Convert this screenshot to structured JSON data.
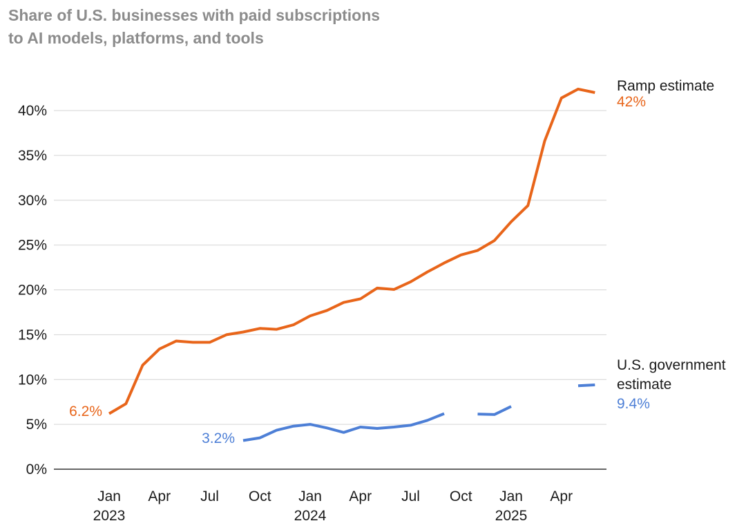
{
  "title_lines": [
    "Share of U.S. businesses with paid subscriptions",
    "to AI models, platforms, and tools"
  ],
  "chart_data": {
    "type": "line",
    "title": "Share of U.S. businesses with paid subscriptions to AI models, platforms, and tools",
    "xlabel": "",
    "ylabel": "",
    "ylim": [
      0,
      40
    ],
    "y_ticks": [
      {
        "value": 0,
        "label": "0%"
      },
      {
        "value": 5,
        "label": "5%"
      },
      {
        "value": 10,
        "label": "10%"
      },
      {
        "value": 15,
        "label": "15%"
      },
      {
        "value": 20,
        "label": "20%"
      },
      {
        "value": 25,
        "label": "25%"
      },
      {
        "value": 30,
        "label": "30%"
      },
      {
        "value": 35,
        "label": "35%"
      },
      {
        "value": 40,
        "label": "40%"
      }
    ],
    "x_range": [
      "2023-01",
      "2025-06"
    ],
    "x_ticks": [
      {
        "month": "2023-01",
        "label": "Jan",
        "year": "2023"
      },
      {
        "month": "2023-04",
        "label": "Apr",
        "year": ""
      },
      {
        "month": "2023-07",
        "label": "Jul",
        "year": ""
      },
      {
        "month": "2023-10",
        "label": "Oct",
        "year": ""
      },
      {
        "month": "2024-01",
        "label": "Jan",
        "year": "2024"
      },
      {
        "month": "2024-04",
        "label": "Apr",
        "year": ""
      },
      {
        "month": "2024-07",
        "label": "Jul",
        "year": ""
      },
      {
        "month": "2024-10",
        "label": "Oct",
        "year": ""
      },
      {
        "month": "2025-01",
        "label": "Jan",
        "year": "2025"
      },
      {
        "month": "2025-04",
        "label": "Apr",
        "year": ""
      }
    ],
    "grid": true,
    "series": [
      {
        "name": "Ramp estimate",
        "end_label": "42%",
        "start_label": "6.2%",
        "color": "#e8651a",
        "points": [
          {
            "t": 0,
            "v": 6.2
          },
          {
            "t": 1,
            "v": 7.3
          },
          {
            "t": 2,
            "v": 11.6
          },
          {
            "t": 3,
            "v": 13.4
          },
          {
            "t": 4,
            "v": 14.3
          },
          {
            "t": 5,
            "v": 14.15
          },
          {
            "t": 6,
            "v": 14.15
          },
          {
            "t": 7,
            "v": 15.0
          },
          {
            "t": 8,
            "v": 15.3
          },
          {
            "t": 9,
            "v": 15.7
          },
          {
            "t": 10,
            "v": 15.6
          },
          {
            "t": 11,
            "v": 16.1
          },
          {
            "t": 12,
            "v": 17.1
          },
          {
            "t": 13,
            "v": 17.7
          },
          {
            "t": 14,
            "v": 18.6
          },
          {
            "t": 15,
            "v": 19.0
          },
          {
            "t": 16,
            "v": 20.2
          },
          {
            "t": 17,
            "v": 20.05
          },
          {
            "t": 18,
            "v": 20.9
          },
          {
            "t": 19,
            "v": 22.0
          },
          {
            "t": 20,
            "v": 23.0
          },
          {
            "t": 21,
            "v": 23.9
          },
          {
            "t": 22,
            "v": 24.4
          },
          {
            "t": 23,
            "v": 25.5
          },
          {
            "t": 24,
            "v": 27.6
          },
          {
            "t": 25,
            "v": 29.4
          },
          {
            "t": 26,
            "v": 36.6
          },
          {
            "t": 27,
            "v": 41.4
          },
          {
            "t": 28,
            "v": 42.4
          },
          {
            "t": 29,
            "v": 42.0
          }
        ]
      },
      {
        "name": "U.S. government estimate",
        "end_label": "9.4%",
        "start_label": "3.2%",
        "color": "#4d7fd6",
        "segments": [
          [
            {
              "t": 8,
              "v": 3.2
            },
            {
              "t": 9,
              "v": 3.5
            },
            {
              "t": 10,
              "v": 4.35
            },
            {
              "t": 11,
              "v": 4.8
            },
            {
              "t": 12,
              "v": 5.0
            },
            {
              "t": 13,
              "v": 4.6
            },
            {
              "t": 14,
              "v": 4.1
            },
            {
              "t": 15,
              "v": 4.7
            },
            {
              "t": 16,
              "v": 4.55
            },
            {
              "t": 17,
              "v": 4.7
            },
            {
              "t": 18,
              "v": 4.9
            },
            {
              "t": 19,
              "v": 5.45
            },
            {
              "t": 20,
              "v": 6.2
            }
          ],
          [
            {
              "t": 22,
              "v": 6.15
            },
            {
              "t": 23,
              "v": 6.1
            },
            {
              "t": 24,
              "v": 7.0
            }
          ],
          [
            {
              "t": 28,
              "v": 9.3
            },
            {
              "t": 29,
              "v": 9.4
            }
          ]
        ]
      }
    ]
  }
}
